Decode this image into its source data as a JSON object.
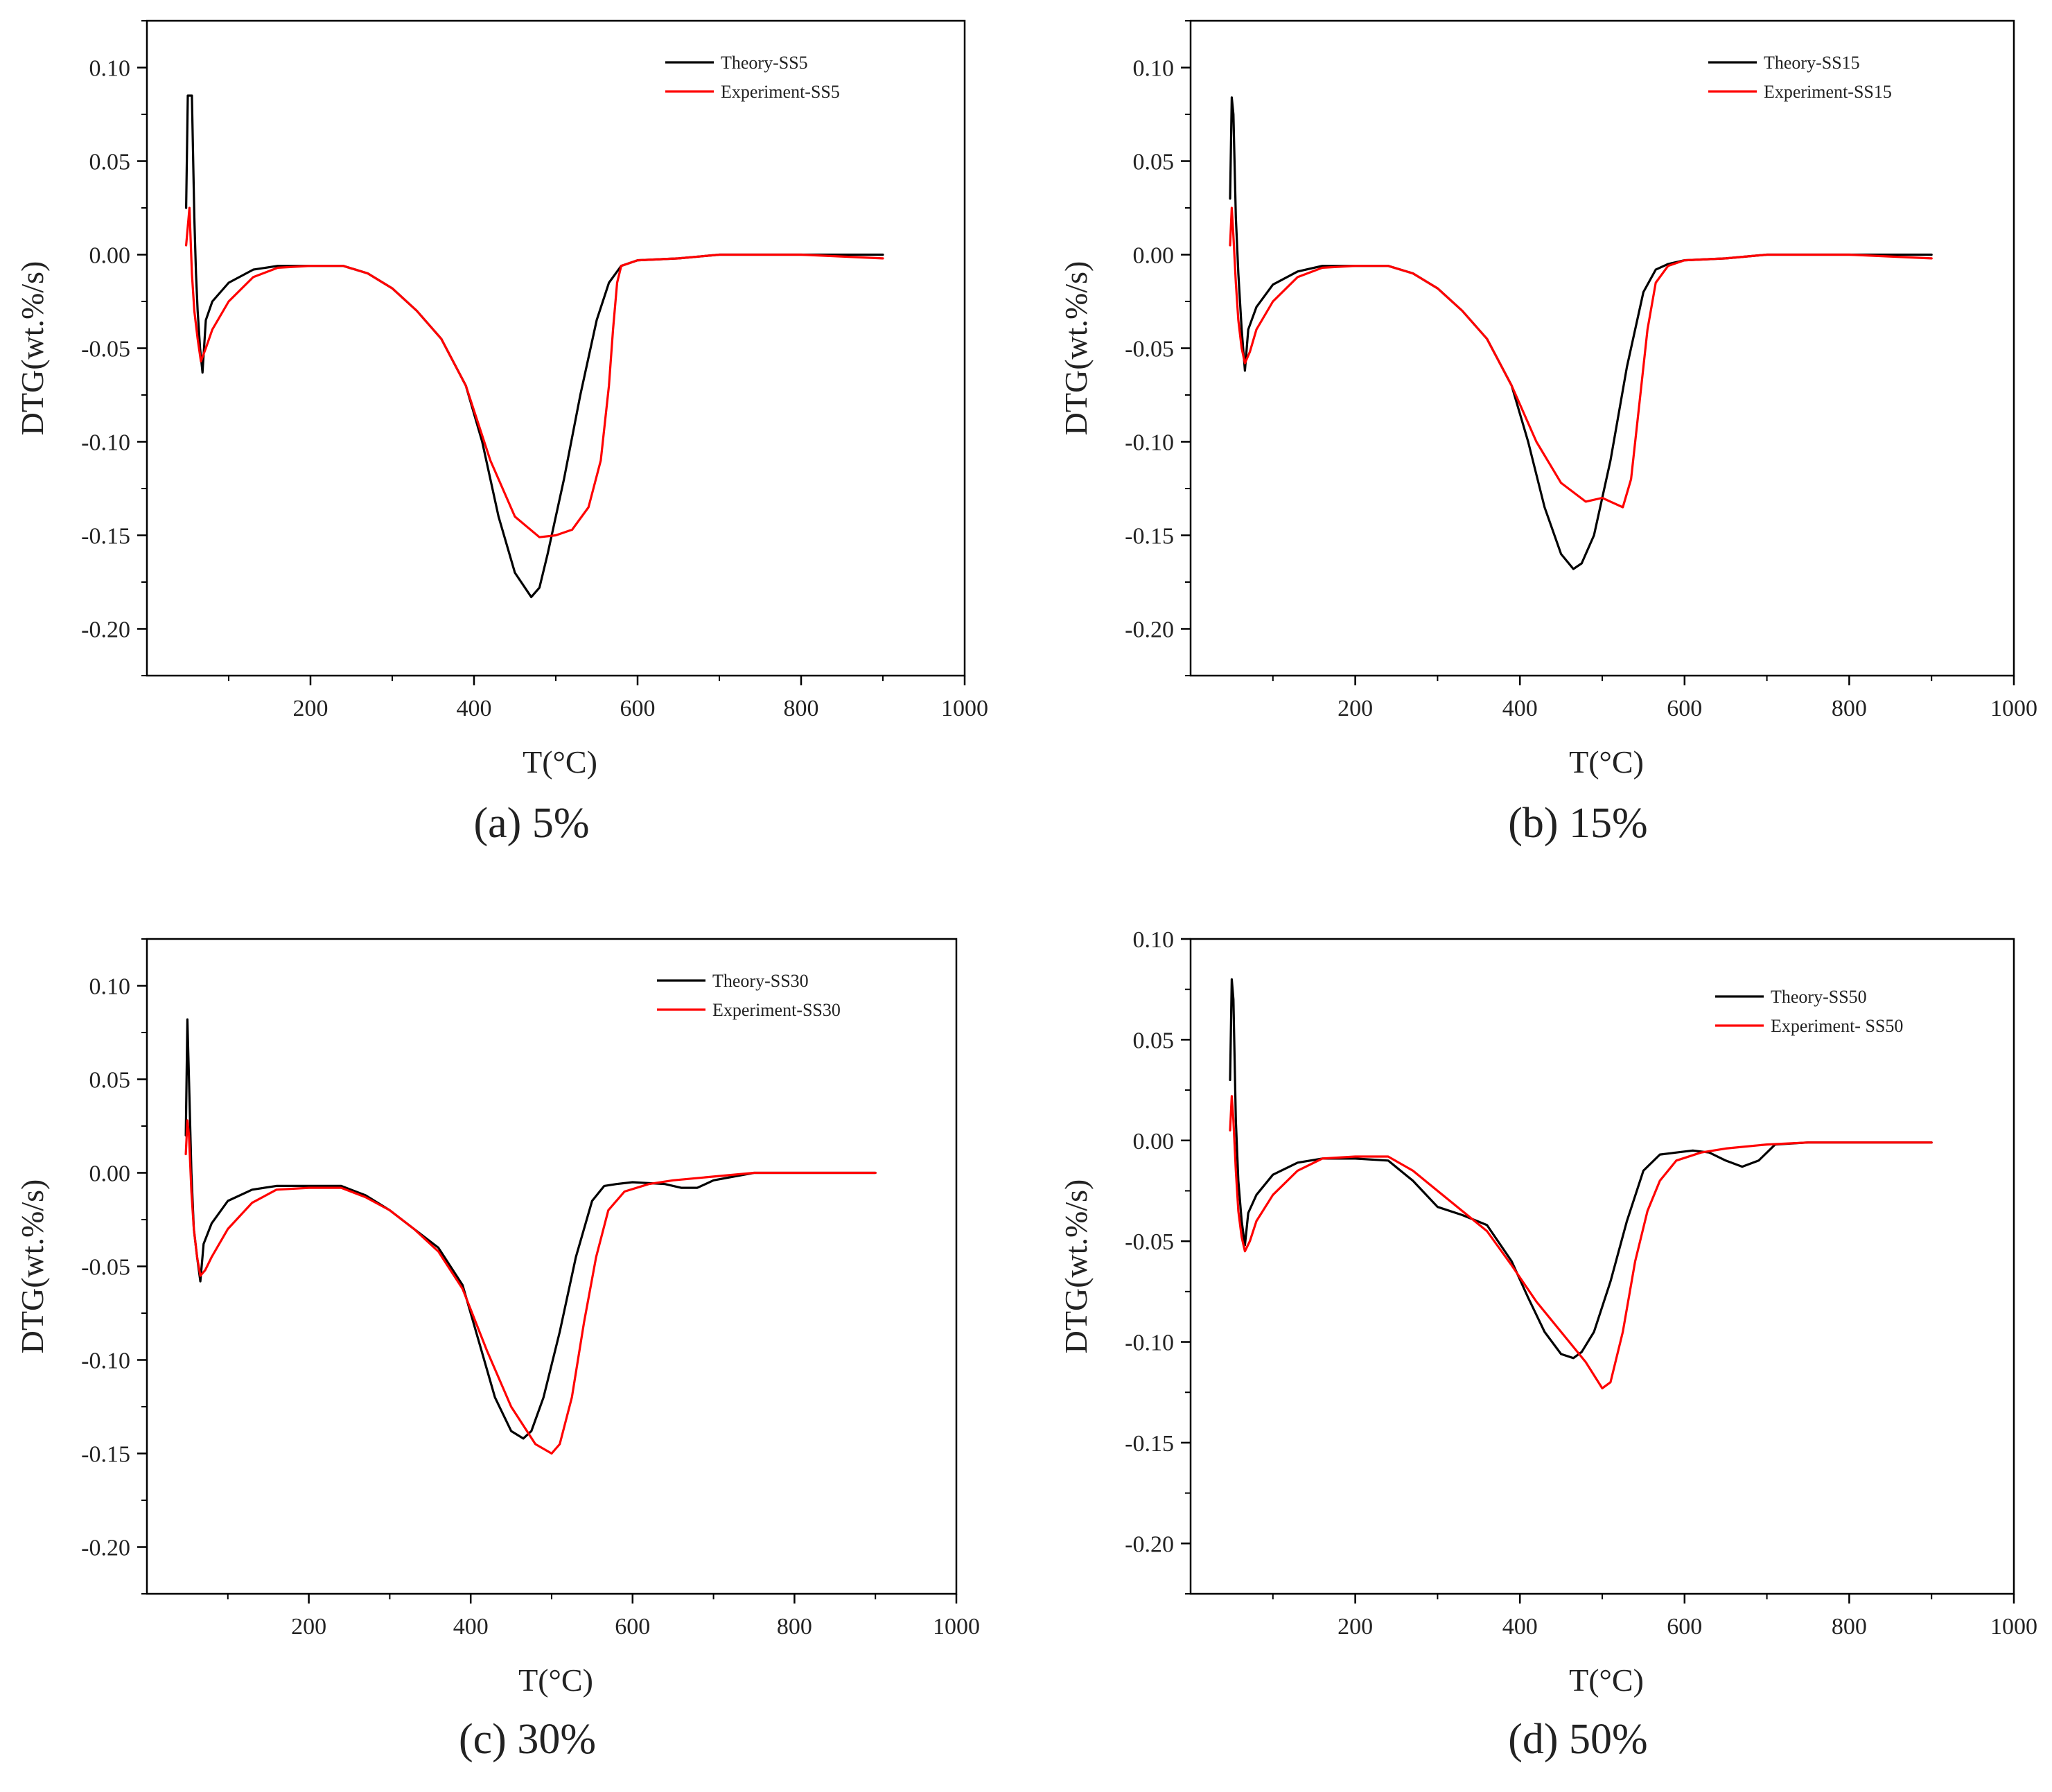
{
  "figure": {
    "background": "#ffffff",
    "theory_color": "#000000",
    "experiment_color": "#ff0000"
  },
  "chart_data": [
    {
      "type": "line",
      "caption": "(a) 5%",
      "xlabel": "T(°C)",
      "ylabel": "DTG(wt.%/s)",
      "xlim": [
        0,
        1000
      ],
      "ylim": [
        -0.225,
        0.125
      ],
      "xticks": [
        200,
        400,
        600,
        800,
        1000
      ],
      "xtick_labels": [
        "200",
        "400",
        "600",
        "800",
        "1000"
      ],
      "yticks": [
        0.1,
        0.05,
        0.0,
        -0.05,
        -0.1,
        -0.15,
        -0.2
      ],
      "ytick_labels": [
        "0.10",
        "0.05",
        "0.00",
        "-0.05",
        "-0.10",
        "-0.15",
        "-0.20"
      ],
      "legend_position": "top-right",
      "series": [
        {
          "name": "Theory-SS5",
          "color": "#000000",
          "x": [
            48,
            50,
            52,
            55,
            58,
            60,
            62,
            65,
            68,
            72,
            80,
            100,
            130,
            160,
            200,
            240,
            270,
            300,
            330,
            360,
            390,
            410,
            430,
            450,
            470,
            480,
            490,
            510,
            530,
            550,
            565,
            580,
            600,
            650,
            700,
            800,
            900
          ],
          "y": [
            0.025,
            0.085,
            0.085,
            0.085,
            0.02,
            -0.01,
            -0.03,
            -0.05,
            -0.063,
            -0.035,
            -0.025,
            -0.015,
            -0.008,
            -0.006,
            -0.006,
            -0.006,
            -0.01,
            -0.018,
            -0.03,
            -0.045,
            -0.07,
            -0.1,
            -0.14,
            -0.17,
            -0.183,
            -0.178,
            -0.16,
            -0.12,
            -0.075,
            -0.035,
            -0.015,
            -0.006,
            -0.003,
            -0.002,
            0.0,
            0.0,
            0.0
          ]
        },
        {
          "name": "Experiment-SS5",
          "color": "#ff0000",
          "x": [
            48,
            50,
            52,
            55,
            58,
            62,
            66,
            72,
            80,
            100,
            130,
            160,
            200,
            240,
            270,
            300,
            330,
            360,
            390,
            420,
            450,
            480,
            500,
            520,
            540,
            555,
            565,
            570,
            575,
            580,
            600,
            650,
            700,
            800,
            900
          ],
          "y": [
            0.005,
            0.015,
            0.025,
            -0.01,
            -0.03,
            -0.045,
            -0.057,
            -0.05,
            -0.04,
            -0.025,
            -0.012,
            -0.007,
            -0.006,
            -0.006,
            -0.01,
            -0.018,
            -0.03,
            -0.045,
            -0.07,
            -0.11,
            -0.14,
            -0.151,
            -0.15,
            -0.147,
            -0.135,
            -0.11,
            -0.07,
            -0.04,
            -0.015,
            -0.006,
            -0.003,
            -0.002,
            0.0,
            0.0,
            -0.002
          ]
        }
      ]
    },
    {
      "type": "line",
      "caption": "(b) 15%",
      "xlabel": "T(°C)",
      "ylabel": "DTG(wt.%/s)",
      "xlim": [
        0,
        1000
      ],
      "ylim": [
        -0.225,
        0.125
      ],
      "xticks": [
        200,
        400,
        600,
        800,
        1000
      ],
      "xtick_labels": [
        "200",
        "400",
        "600",
        "800",
        "1000"
      ],
      "yticks": [
        0.1,
        0.05,
        0.0,
        -0.05,
        -0.1,
        -0.15,
        -0.2
      ],
      "ytick_labels": [
        "0.10",
        "0.05",
        "0.00",
        "-0.05",
        "-0.10",
        "-0.15",
        "-0.20"
      ],
      "legend_position": "top-right",
      "series": [
        {
          "name": "Theory-SS15",
          "color": "#000000",
          "x": [
            48,
            50,
            52,
            55,
            58,
            62,
            66,
            70,
            80,
            100,
            130,
            160,
            200,
            240,
            270,
            300,
            330,
            360,
            390,
            410,
            430,
            450,
            465,
            475,
            490,
            510,
            530,
            550,
            565,
            580,
            600,
            650,
            700,
            800,
            900
          ],
          "y": [
            0.03,
            0.084,
            0.075,
            0.02,
            -0.01,
            -0.04,
            -0.062,
            -0.04,
            -0.028,
            -0.016,
            -0.009,
            -0.006,
            -0.006,
            -0.006,
            -0.01,
            -0.018,
            -0.03,
            -0.045,
            -0.07,
            -0.1,
            -0.135,
            -0.16,
            -0.168,
            -0.165,
            -0.15,
            -0.11,
            -0.06,
            -0.02,
            -0.008,
            -0.005,
            -0.003,
            -0.002,
            0.0,
            0.0,
            0.0
          ]
        },
        {
          "name": "Experiment-SS15",
          "color": "#ff0000",
          "x": [
            48,
            50,
            52,
            55,
            58,
            62,
            66,
            72,
            80,
            100,
            130,
            160,
            200,
            240,
            270,
            300,
            330,
            360,
            390,
            420,
            450,
            480,
            500,
            510,
            525,
            535,
            545,
            555,
            565,
            580,
            600,
            650,
            700,
            800,
            900
          ],
          "y": [
            0.005,
            0.025,
            0.01,
            -0.015,
            -0.035,
            -0.05,
            -0.058,
            -0.052,
            -0.04,
            -0.025,
            -0.012,
            -0.007,
            -0.006,
            -0.006,
            -0.01,
            -0.018,
            -0.03,
            -0.045,
            -0.07,
            -0.1,
            -0.122,
            -0.132,
            -0.13,
            -0.132,
            -0.135,
            -0.12,
            -0.08,
            -0.04,
            -0.015,
            -0.006,
            -0.003,
            -0.002,
            0.0,
            0.0,
            -0.002
          ]
        }
      ]
    },
    {
      "type": "line",
      "caption": "(c) 30%",
      "xlabel": "T(°C)",
      "ylabel": "DTG(wt.%/s)",
      "xlim": [
        0,
        1000
      ],
      "ylim": [
        -0.225,
        0.125
      ],
      "xticks": [
        200,
        400,
        600,
        800,
        1000
      ],
      "xtick_labels": [
        "200",
        "400",
        "600",
        "800",
        "1000"
      ],
      "yticks": [
        0.1,
        0.05,
        0.0,
        -0.05,
        -0.1,
        -0.15,
        -0.2
      ],
      "ytick_labels": [
        "0.10",
        "0.05",
        "0.00",
        "-0.05",
        "-0.10",
        "-0.15",
        "-0.20"
      ],
      "legend_position": "top-right",
      "series": [
        {
          "name": "Theory-SS30",
          "color": "#000000",
          "x": [
            48,
            50,
            52,
            55,
            58,
            62,
            66,
            70,
            80,
            100,
            130,
            160,
            200,
            240,
            270,
            300,
            330,
            360,
            390,
            410,
            430,
            450,
            465,
            475,
            490,
            510,
            530,
            550,
            565,
            580,
            600,
            640,
            660,
            680,
            700,
            750,
            800,
            850,
            900
          ],
          "y": [
            0.02,
            0.082,
            0.05,
            0.0,
            -0.03,
            -0.045,
            -0.058,
            -0.038,
            -0.027,
            -0.015,
            -0.009,
            -0.007,
            -0.007,
            -0.007,
            -0.012,
            -0.02,
            -0.03,
            -0.04,
            -0.06,
            -0.09,
            -0.12,
            -0.138,
            -0.142,
            -0.138,
            -0.12,
            -0.085,
            -0.045,
            -0.015,
            -0.007,
            -0.006,
            -0.005,
            -0.006,
            -0.008,
            -0.008,
            -0.004,
            0.0,
            0.0,
            0.0,
            0.0
          ]
        },
        {
          "name": "Experiment-SS30",
          "color": "#ff0000",
          "x": [
            48,
            50,
            52,
            55,
            58,
            62,
            66,
            72,
            80,
            100,
            130,
            160,
            200,
            240,
            270,
            300,
            330,
            360,
            390,
            420,
            450,
            480,
            500,
            510,
            525,
            540,
            555,
            570,
            590,
            620,
            650,
            700,
            750,
            800,
            850,
            900
          ],
          "y": [
            0.01,
            0.028,
            0.02,
            -0.01,
            -0.03,
            -0.045,
            -0.055,
            -0.052,
            -0.045,
            -0.03,
            -0.016,
            -0.009,
            -0.008,
            -0.008,
            -0.013,
            -0.02,
            -0.03,
            -0.042,
            -0.062,
            -0.095,
            -0.125,
            -0.145,
            -0.15,
            -0.145,
            -0.12,
            -0.08,
            -0.045,
            -0.02,
            -0.01,
            -0.006,
            -0.004,
            -0.002,
            0.0,
            0.0,
            0.0,
            0.0
          ]
        }
      ]
    },
    {
      "type": "line",
      "caption": "(d) 50%",
      "xlabel": "T(°C)",
      "ylabel": "DTG(wt.%/s)",
      "xlim": [
        0,
        1000
      ],
      "ylim": [
        -0.225,
        0.1
      ],
      "xticks": [
        200,
        400,
        600,
        800,
        1000
      ],
      "xtick_labels": [
        "200",
        "400",
        "600",
        "800",
        "1000"
      ],
      "yticks": [
        0.1,
        0.05,
        0.0,
        -0.05,
        -0.1,
        -0.15,
        -0.2
      ],
      "ytick_labels": [
        "0.10",
        "0.05",
        "0.00",
        "-0.05",
        "-0.10",
        "-0.15",
        "-0.20"
      ],
      "legend_position": "top-right",
      "series": [
        {
          "name": "Theory-SS50",
          "color": "#000000",
          "x": [
            48,
            50,
            52,
            55,
            58,
            62,
            66,
            70,
            80,
            100,
            130,
            160,
            200,
            240,
            270,
            300,
            330,
            360,
            390,
            410,
            430,
            450,
            465,
            475,
            490,
            510,
            530,
            550,
            570,
            590,
            610,
            630,
            650,
            670,
            690,
            710,
            750,
            800,
            850,
            900
          ],
          "y": [
            0.03,
            0.08,
            0.07,
            0.01,
            -0.02,
            -0.04,
            -0.052,
            -0.036,
            -0.027,
            -0.017,
            -0.011,
            -0.009,
            -0.009,
            -0.01,
            -0.02,
            -0.033,
            -0.037,
            -0.042,
            -0.06,
            -0.078,
            -0.095,
            -0.106,
            -0.108,
            -0.105,
            -0.095,
            -0.07,
            -0.04,
            -0.015,
            -0.007,
            -0.006,
            -0.005,
            -0.006,
            -0.01,
            -0.013,
            -0.01,
            -0.002,
            -0.001,
            -0.001,
            -0.001,
            -0.001
          ]
        },
        {
          "name": "Experiment- SS50",
          "color": "#ff0000",
          "x": [
            48,
            50,
            52,
            55,
            58,
            62,
            66,
            72,
            80,
            100,
            130,
            160,
            200,
            240,
            270,
            300,
            330,
            360,
            390,
            420,
            450,
            480,
            500,
            510,
            525,
            540,
            555,
            570,
            590,
            620,
            650,
            700,
            750,
            800,
            850,
            900
          ],
          "y": [
            0.005,
            0.022,
            0.01,
            -0.015,
            -0.035,
            -0.048,
            -0.055,
            -0.05,
            -0.04,
            -0.027,
            -0.015,
            -0.009,
            -0.008,
            -0.008,
            -0.015,
            -0.025,
            -0.035,
            -0.045,
            -0.062,
            -0.08,
            -0.095,
            -0.11,
            -0.123,
            -0.12,
            -0.095,
            -0.06,
            -0.035,
            -0.02,
            -0.01,
            -0.006,
            -0.004,
            -0.002,
            -0.001,
            -0.001,
            -0.001,
            -0.001
          ]
        }
      ]
    }
  ]
}
